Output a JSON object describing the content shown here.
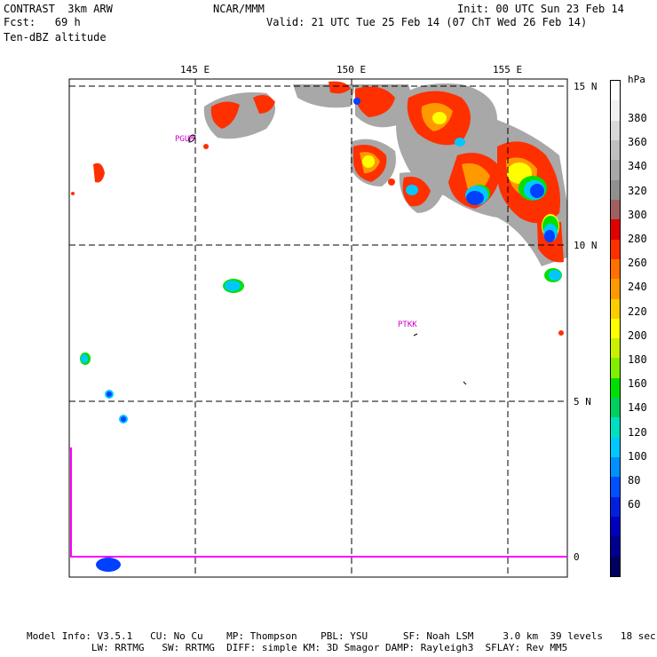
{
  "header": {
    "model": "CONTRAST  3km ARW",
    "org": "NCAR/MMM",
    "init": "Init: 00 UTC Sun 23 Feb 14",
    "fcst": "Fcst:   69 h",
    "valid": "Valid: 21 UTC Tue 25 Feb 14 (07 ChT Wed 26 Feb 14)",
    "field": "Ten-dBZ altitude"
  },
  "map": {
    "lon_labels": [
      "145 E",
      "150 E",
      "155 E"
    ],
    "lat_labels": [
      "15 N",
      "10 N",
      "5 N",
      "0"
    ],
    "stations": [
      "PGUM",
      "PTKK"
    ]
  },
  "colorbar": {
    "unit": "hPa",
    "labels": [
      "380",
      "360",
      "340",
      "320",
      "300",
      "280",
      "260",
      "240",
      "220",
      "200",
      "180",
      "160",
      "140",
      "120",
      "100",
      "80",
      "60"
    ],
    "colors": [
      "#ffffff",
      "#f0f0f0",
      "#d8d8d8",
      "#c0c0c0",
      "#a8a8a8",
      "#909090",
      "#a06060",
      "#e00000",
      "#ff3000",
      "#ff7000",
      "#ff9900",
      "#ffcc00",
      "#ffff00",
      "#c8f000",
      "#80f000",
      "#00e000",
      "#00d060",
      "#00e0c0",
      "#00c8ff",
      "#0090ff",
      "#0050ff",
      "#0020e0",
      "#0000c0",
      "#000090",
      "#000060"
    ]
  },
  "footer": {
    "line1": "Model Info: V3.5.1   CU: No Cu    MP: Thompson    PBL: YSU      SF: Noah LSM     3.0 km  39 levels   18 sec",
    "line2": "           LW: RRTMG   SW: RRTMG  DIFF: simple KM: 3D Smagor DAMP: Rayleigh3  SFLAY: Rev MM5"
  }
}
